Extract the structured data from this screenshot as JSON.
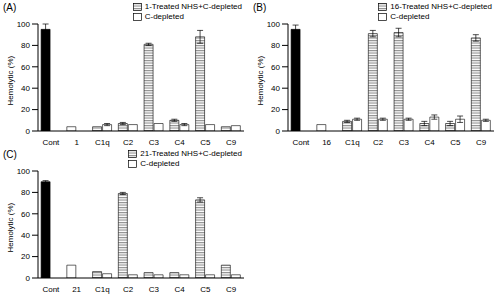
{
  "chart_data": [
    {
      "type": "bar",
      "title": "(A)",
      "y_label": "Hemolytic (%)",
      "ylim": [
        0,
        100
      ],
      "yticks": [
        0,
        20,
        40,
        60,
        80,
        100
      ],
      "legend": "top-right",
      "categories": [
        "Cont",
        "1",
        "C1q",
        "C2",
        "C3",
        "C4",
        "C5",
        "C9"
      ],
      "series": [
        {
          "name": "1-Treated NHS+C-depleted",
          "color": "#808080",
          "colors": [
            "#000000",
            "#ffffff",
            "#808080",
            "#808080",
            "#808080",
            "#808080",
            "#808080",
            "#808080"
          ],
          "values": [
            95,
            4,
            4,
            7,
            81,
            10,
            88,
            4
          ],
          "errors": [
            5,
            null,
            null,
            1,
            1,
            1,
            6,
            null
          ]
        },
        {
          "name": "C-depleted",
          "color": "#ffffff",
          "values": [
            null,
            null,
            6,
            6,
            7,
            6,
            6,
            5
          ],
          "errors": [
            null,
            null,
            1,
            null,
            null,
            1,
            null,
            null
          ]
        }
      ]
    },
    {
      "type": "bar",
      "title": "(B)",
      "y_label": "Hemolytic (%)",
      "ylim": [
        0,
        100
      ],
      "yticks": [
        0,
        20,
        40,
        60,
        80,
        100
      ],
      "legend": "top-right",
      "categories": [
        "Cont",
        "16",
        "C1q",
        "C2",
        "C3",
        "C4",
        "C5",
        "C9"
      ],
      "series": [
        {
          "name": "16-Treated NHS+C-depleted",
          "color": "#808080",
          "colors": [
            "#000000",
            "#ffffff",
            "#808080",
            "#808080",
            "#808080",
            "#808080",
            "#808080",
            "#808080"
          ],
          "values": [
            95,
            6,
            9,
            91,
            92,
            7,
            7,
            87
          ],
          "errors": [
            4,
            null,
            1,
            3,
            4,
            2,
            2,
            3
          ]
        },
        {
          "name": "C-depleted",
          "color": "#ffffff",
          "values": [
            null,
            null,
            11,
            11,
            11,
            13,
            11,
            10
          ],
          "errors": [
            null,
            null,
            1,
            1,
            1,
            2,
            3,
            1
          ]
        }
      ]
    },
    {
      "type": "bar",
      "title": "(C)",
      "y_label": "Hemolytic (%)",
      "ylim": [
        0,
        100
      ],
      "yticks": [
        0,
        20,
        40,
        60,
        80,
        100
      ],
      "legend": "top-right",
      "categories": [
        "Cont",
        "21",
        "C1q",
        "C2",
        "C3",
        "C4",
        "C5",
        "C9"
      ],
      "series": [
        {
          "name": "21-Treated NHS+C-depleted",
          "color": "#808080",
          "colors": [
            "#000000",
            "#ffffff",
            "#808080",
            "#808080",
            "#808080",
            "#808080",
            "#808080",
            "#808080"
          ],
          "values": [
            90,
            12,
            6,
            79,
            5,
            5,
            73,
            12
          ],
          "errors": [
            1,
            null,
            null,
            1,
            null,
            null,
            2,
            null
          ]
        },
        {
          "name": "C-depleted",
          "color": "#ffffff",
          "values": [
            null,
            null,
            4,
            3,
            3,
            3,
            3,
            3
          ],
          "errors": [
            null,
            null,
            null,
            null,
            null,
            null,
            null,
            null
          ]
        }
      ]
    }
  ]
}
